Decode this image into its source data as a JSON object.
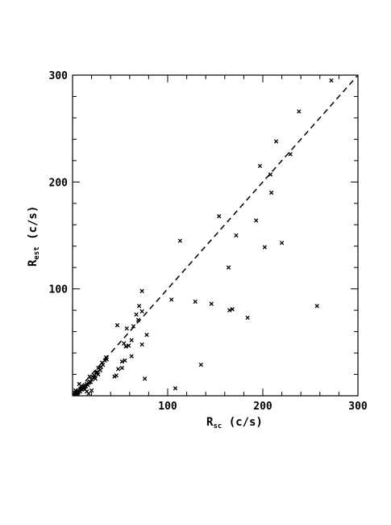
{
  "chart_data": {
    "type": "scatter",
    "title": "",
    "xlabel": {
      "main": "R",
      "sub": "sc",
      "unit": " (c/s)"
    },
    "ylabel": {
      "main": "R",
      "sub": "est",
      "unit": " (c/s)"
    },
    "xlim": [
      0,
      300
    ],
    "ylim": [
      0,
      300
    ],
    "xticks": [
      100,
      200,
      300
    ],
    "yticks": [
      100,
      200,
      300
    ],
    "grid": false,
    "reference_line": {
      "style": "dashed",
      "from": [
        0,
        0
      ],
      "to": [
        300,
        300
      ]
    },
    "marker": "x",
    "series": [
      {
        "x": [
          272,
          238,
          214,
          229,
          197,
          208,
          209,
          220,
          202,
          193,
          172,
          154,
          113,
          164,
          257,
          184,
          165,
          168,
          146,
          129,
          104,
          73,
          70,
          73,
          67,
          47,
          78,
          64,
          69,
          57,
          54,
          56,
          59,
          62,
          73,
          62,
          55,
          52,
          48,
          44,
          46,
          135,
          108,
          76,
          52,
          35,
          36,
          34,
          31,
          32,
          30,
          27,
          29,
          26,
          25,
          23,
          21,
          23,
          20,
          18,
          17,
          15,
          13,
          12,
          10,
          9,
          8,
          7,
          6,
          5,
          4,
          3,
          4,
          5,
          3,
          6,
          8,
          10,
          12,
          14,
          16,
          19,
          18,
          22,
          24,
          11,
          7,
          9,
          2,
          5,
          15,
          20,
          17,
          13,
          25,
          27,
          29
        ],
        "y": [
          295,
          266,
          238,
          226,
          215,
          207,
          190,
          143,
          139,
          164,
          150,
          168,
          145,
          120,
          84,
          73,
          80,
          81,
          86,
          88,
          90,
          98,
          84,
          79,
          76,
          66,
          57,
          65,
          71,
          63,
          49,
          46,
          47,
          52,
          48,
          37,
          33,
          32,
          25,
          18,
          19,
          29,
          7,
          16,
          26,
          36,
          34,
          33,
          31,
          29,
          27,
          26,
          24,
          22,
          21,
          19,
          18,
          17,
          15,
          13,
          12,
          11,
          10,
          9,
          8,
          7,
          6,
          5,
          4,
          3,
          3,
          2,
          2,
          4,
          5,
          3,
          4,
          6,
          8,
          9,
          10,
          13,
          18,
          17,
          16,
          7,
          11,
          6,
          3,
          2,
          4,
          5,
          2,
          6,
          22,
          20,
          24
        ]
      }
    ]
  }
}
